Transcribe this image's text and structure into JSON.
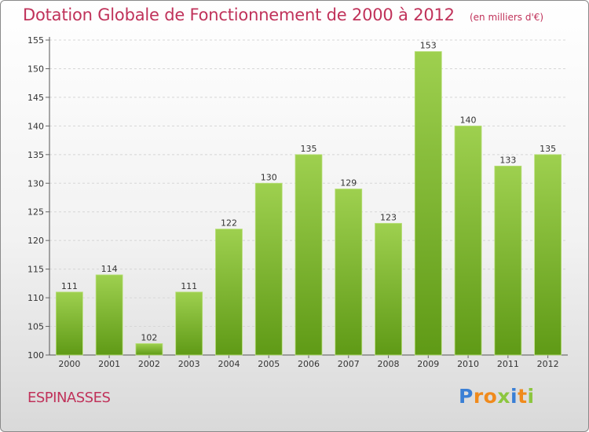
{
  "chart_data": {
    "type": "bar",
    "title": "Dotation Globale de Fonctionnement de 2000 à 2012",
    "subtitle": "(en milliers d'€)",
    "categories": [
      "2000",
      "2001",
      "2002",
      "2003",
      "2004",
      "2005",
      "2006",
      "2007",
      "2008",
      "2009",
      "2010",
      "2011",
      "2012"
    ],
    "values": [
      111,
      114,
      102,
      111,
      122,
      130,
      135,
      129,
      123,
      153,
      140,
      133,
      135
    ],
    "ylim": [
      100,
      155
    ],
    "yticks": [
      100,
      105,
      110,
      115,
      120,
      125,
      130,
      135,
      140,
      145,
      150,
      155
    ],
    "grid": true,
    "colors": {
      "bar_top": "#9ed04f",
      "bar_bottom": "#5f9a16",
      "text": "#c0325a"
    }
  },
  "footer": {
    "commune": "ESPINASSES"
  },
  "logo": {
    "text": "Proxiti",
    "letters": [
      {
        "ch": "P",
        "color": "#3a7fd5"
      },
      {
        "ch": "r",
        "color": "#f08a1c"
      },
      {
        "ch": "o",
        "color": "#f08a1c"
      },
      {
        "ch": "x",
        "color": "#8cc63f"
      },
      {
        "ch": "i",
        "color": "#3a7fd5"
      },
      {
        "ch": "t",
        "color": "#f08a1c"
      },
      {
        "ch": "i",
        "color": "#8cc63f"
      }
    ]
  }
}
